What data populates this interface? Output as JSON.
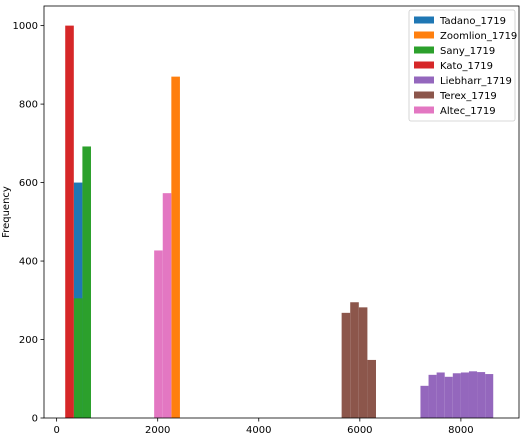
{
  "chart_data": {
    "type": "bar",
    "chart_subtype": "overlaid histogram",
    "title": "",
    "xlabel": "",
    "ylabel": "Frequency",
    "xlim": [
      -250,
      9150
    ],
    "ylim": [
      0,
      1050
    ],
    "xticks": [
      0,
      2000,
      4000,
      6000,
      8000
    ],
    "yticks": [
      0,
      200,
      400,
      600,
      800,
      1000
    ],
    "grid": false,
    "legend_position": "top-right",
    "series": [
      {
        "name": "Tadano_1719",
        "color": "#1f77b4",
        "bins": [
          {
            "x0": 340,
            "x1": 510,
            "count": 600
          },
          {
            "x0": 510,
            "x1": 680,
            "count": 600
          }
        ]
      },
      {
        "name": "Zoomlion_1719",
        "color": "#ff7f0e",
        "bins": [
          {
            "x0": 2270,
            "x1": 2440,
            "count": 870
          }
        ]
      },
      {
        "name": "Sany_1719",
        "color": "#2ca02c",
        "bins": [
          {
            "x0": 340,
            "x1": 510,
            "count": 305
          },
          {
            "x0": 510,
            "x1": 680,
            "count": 692
          }
        ]
      },
      {
        "name": "Kato_1719",
        "color": "#d62728",
        "bins": [
          {
            "x0": 170,
            "x1": 340,
            "count": 1000
          }
        ]
      },
      {
        "name": "Liebharr_1719",
        "color": "#9467bd",
        "bins": [
          {
            "x0": 7200,
            "x1": 7360,
            "count": 82
          },
          {
            "x0": 7360,
            "x1": 7520,
            "count": 110
          },
          {
            "x0": 7520,
            "x1": 7680,
            "count": 116
          },
          {
            "x0": 7680,
            "x1": 7840,
            "count": 105
          },
          {
            "x0": 7840,
            "x1": 8000,
            "count": 114
          },
          {
            "x0": 8000,
            "x1": 8160,
            "count": 116
          },
          {
            "x0": 8160,
            "x1": 8320,
            "count": 119
          },
          {
            "x0": 8320,
            "x1": 8480,
            "count": 117
          },
          {
            "x0": 8480,
            "x1": 8640,
            "count": 112
          }
        ]
      },
      {
        "name": "Terex_1719",
        "color": "#8c564b",
        "bins": [
          {
            "x0": 5640,
            "x1": 5810,
            "count": 268
          },
          {
            "x0": 5810,
            "x1": 5980,
            "count": 295
          },
          {
            "x0": 5980,
            "x1": 6150,
            "count": 282
          },
          {
            "x0": 6150,
            "x1": 6320,
            "count": 148
          }
        ]
      },
      {
        "name": "Altec_1719",
        "color": "#e377c2",
        "bins": [
          {
            "x0": 1930,
            "x1": 2100,
            "count": 427
          },
          {
            "x0": 2100,
            "x1": 2270,
            "count": 573
          }
        ]
      }
    ]
  }
}
